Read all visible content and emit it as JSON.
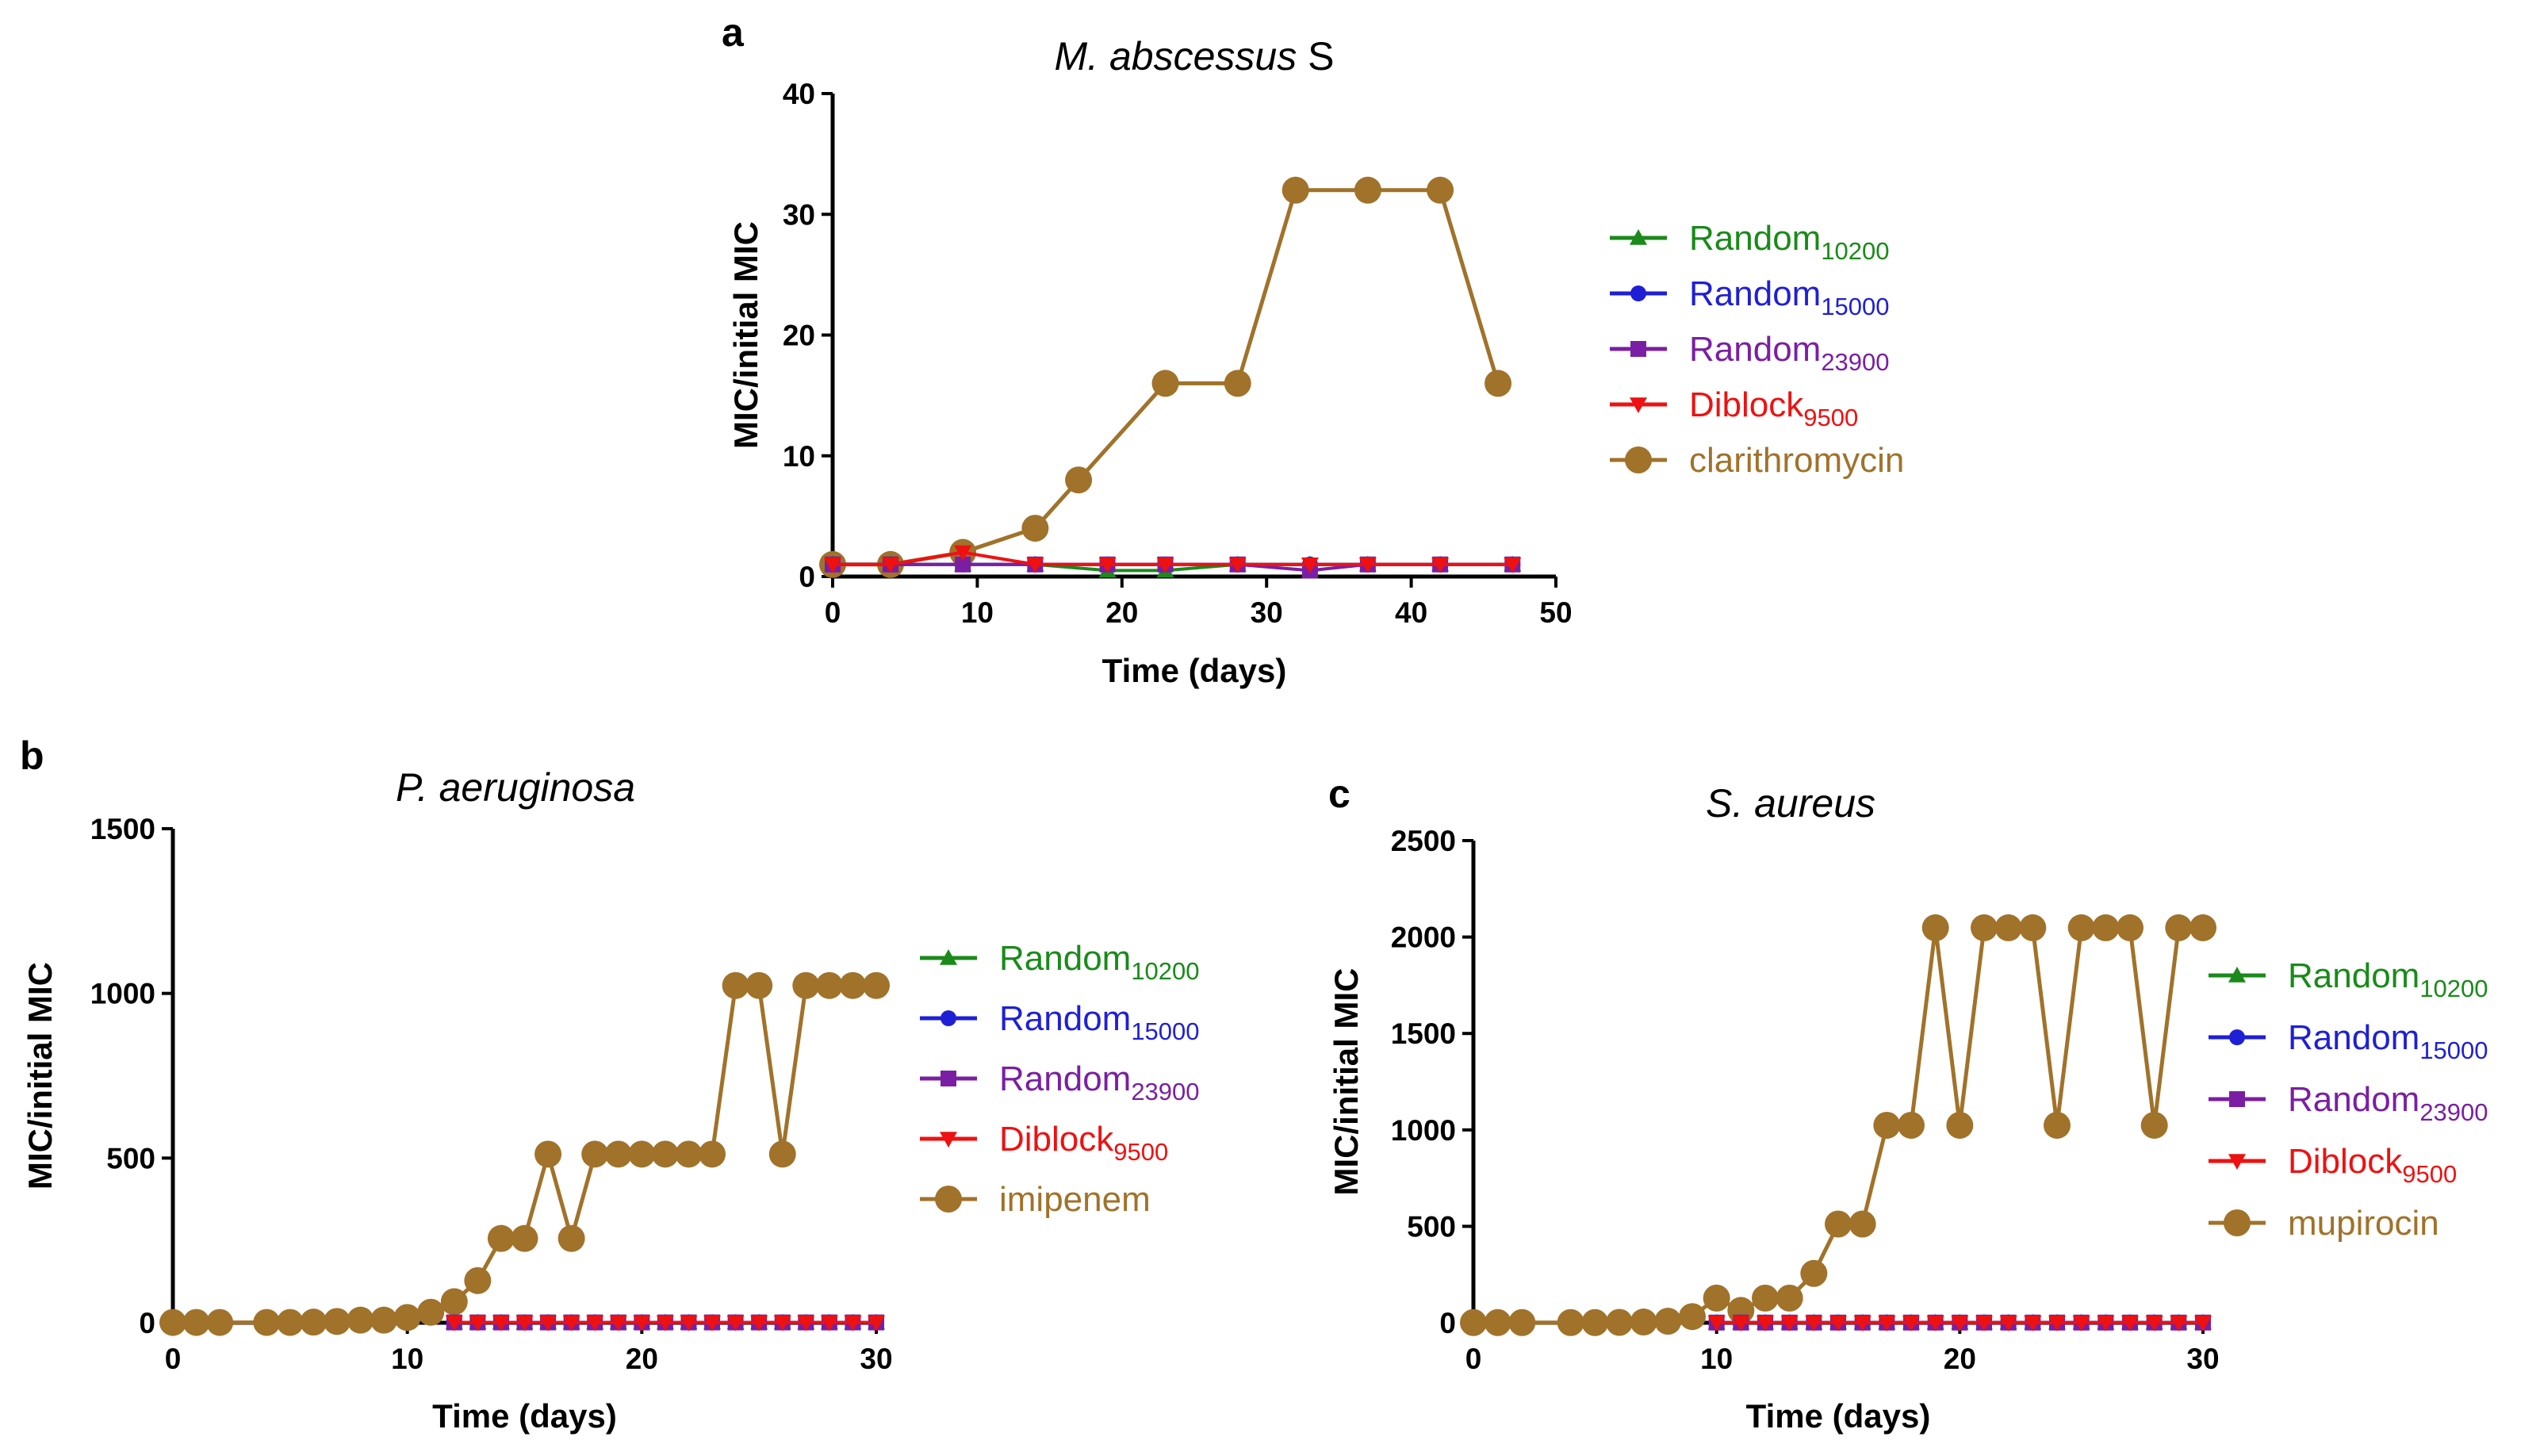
{
  "chart_data": [
    {
      "panel": "a",
      "type": "line",
      "title_parts": [
        "M. abscessus",
        " S"
      ],
      "xlabel": "Time (days)",
      "ylabel": "MIC/initial MIC",
      "xlim": [
        0,
        50
      ],
      "ylim": [
        0,
        40
      ],
      "xticks": [
        0,
        10,
        20,
        30,
        40,
        50
      ],
      "yticks": [
        0,
        10,
        20,
        30,
        40
      ],
      "grid": false,
      "legend_position": "right",
      "series": [
        {
          "label": "Random",
          "subscript": "10200",
          "color": "#1a8a1a",
          "marker": "triangle-up",
          "x": [
            0,
            4,
            9,
            14,
            19,
            23,
            28,
            33,
            37,
            42,
            47
          ],
          "y": [
            1,
            1,
            1,
            1,
            0.5,
            0.5,
            1,
            1,
            1,
            1,
            1
          ]
        },
        {
          "label": "Random",
          "subscript": "15000",
          "color": "#1f1fd6",
          "marker": "circle",
          "x": [
            0,
            4,
            9,
            14,
            19,
            23,
            28,
            33,
            37,
            42,
            47
          ],
          "y": [
            1,
            1,
            1,
            1,
            1,
            1,
            1,
            1,
            1,
            1,
            1
          ]
        },
        {
          "label": "Random",
          "subscript": "23900",
          "color": "#7a1fa3",
          "marker": "square",
          "x": [
            0,
            4,
            9,
            14,
            19,
            23,
            28,
            33,
            37,
            42,
            47
          ],
          "y": [
            1,
            1,
            1,
            1,
            1,
            1,
            1,
            0.5,
            1,
            1,
            1
          ]
        },
        {
          "label": "Diblock",
          "subscript": "9500",
          "color": "#ee1111",
          "marker": "triangle-down",
          "x": [
            0,
            4,
            9,
            14,
            19,
            23,
            28,
            33,
            37,
            42,
            47
          ],
          "y": [
            1,
            1,
            2,
            1,
            1,
            1,
            1,
            1,
            1,
            1,
            1
          ]
        },
        {
          "label": "clarithromycin",
          "subscript": "",
          "color": "#a0722a",
          "marker": "big-circle",
          "x": [
            0,
            4,
            9,
            14,
            17,
            23,
            28,
            32,
            37,
            42,
            46
          ],
          "y": [
            1,
            1,
            2,
            4,
            8,
            16,
            16,
            32,
            32,
            32,
            16
          ]
        }
      ]
    },
    {
      "panel": "b",
      "type": "line",
      "title_parts": [
        "P. aeruginosa",
        ""
      ],
      "xlabel": "Time (days)",
      "ylabel": "MIC/initial MIC",
      "xlim": [
        0,
        30
      ],
      "ylim": [
        0,
        1500
      ],
      "xticks": [
        0,
        10,
        20,
        30
      ],
      "yticks": [
        0,
        500,
        1000,
        1500
      ],
      "grid": false,
      "legend_position": "right",
      "series": [
        {
          "label": "Random",
          "subscript": "10200",
          "color": "#1a8a1a",
          "marker": "triangle-up",
          "x": [
            12,
            13,
            14,
            15,
            16,
            17,
            18,
            19,
            20,
            21,
            22,
            23,
            24,
            25,
            26,
            27,
            28,
            29,
            30
          ],
          "y": [
            1,
            1,
            1,
            1,
            1,
            1,
            1,
            1,
            1,
            1,
            1,
            1,
            1,
            1,
            1,
            1,
            1,
            1,
            1
          ]
        },
        {
          "label": "Random",
          "subscript": "15000",
          "color": "#1f1fd6",
          "marker": "circle",
          "x": [
            12,
            13,
            14,
            15,
            16,
            17,
            18,
            19,
            20,
            21,
            22,
            23,
            24,
            25,
            26,
            27,
            28,
            29,
            30
          ],
          "y": [
            1,
            1,
            1,
            1,
            1,
            1,
            1,
            1,
            1,
            1,
            1,
            1,
            1,
            1,
            1,
            1,
            1,
            1,
            1
          ]
        },
        {
          "label": "Random",
          "subscript": "23900",
          "color": "#7a1fa3",
          "marker": "square",
          "x": [
            12,
            13,
            14,
            15,
            16,
            17,
            18,
            19,
            20,
            21,
            22,
            23,
            24,
            25,
            26,
            27,
            28,
            29,
            30
          ],
          "y": [
            1,
            1,
            1,
            1,
            1,
            1,
            1,
            1,
            1,
            1,
            1,
            1,
            1,
            1,
            1,
            1,
            1,
            1,
            1
          ]
        },
        {
          "label": "Diblock",
          "subscript": "9500",
          "color": "#ee1111",
          "marker": "triangle-down",
          "x": [
            12,
            13,
            14,
            15,
            16,
            17,
            18,
            19,
            20,
            21,
            22,
            23,
            24,
            25,
            26,
            27,
            28,
            29,
            30
          ],
          "y": [
            1,
            1,
            1,
            1,
            1,
            1,
            1,
            1,
            1,
            1,
            1,
            1,
            1,
            1,
            1,
            1,
            1,
            1,
            1
          ]
        },
        {
          "label": "imipenem",
          "subscript": "",
          "color": "#a0722a",
          "marker": "big-circle",
          "x": [
            0,
            1,
            2,
            4,
            5,
            6,
            7,
            8,
            9,
            10,
            11,
            12,
            13,
            14,
            15,
            16,
            17,
            18,
            19,
            20,
            21,
            22,
            23,
            24,
            25,
            26,
            27,
            28,
            29,
            30
          ],
          "y": [
            1,
            1,
            1,
            1,
            1,
            2,
            4,
            8,
            8,
            16,
            32,
            64,
            128,
            256,
            256,
            512,
            256,
            512,
            512,
            512,
            512,
            512,
            512,
            1024,
            1024,
            512,
            1024,
            1024,
            1024,
            1024
          ]
        }
      ]
    },
    {
      "panel": "c",
      "type": "line",
      "title_parts": [
        "S. aureus",
        ""
      ],
      "xlabel": "Time (days)",
      "ylabel": "MIC/initial MIC",
      "xlim": [
        0,
        30
      ],
      "ylim": [
        0,
        2500
      ],
      "xticks": [
        0,
        10,
        20,
        30
      ],
      "yticks": [
        0,
        500,
        1000,
        1500,
        2000,
        2500
      ],
      "grid": false,
      "legend_position": "right",
      "series": [
        {
          "label": "Random",
          "subscript": "10200",
          "color": "#1a8a1a",
          "marker": "triangle-up",
          "x": [
            10,
            11,
            12,
            13,
            14,
            15,
            16,
            17,
            18,
            19,
            20,
            21,
            22,
            23,
            24,
            25,
            26,
            27,
            28,
            29,
            30
          ],
          "y": [
            1,
            1,
            1,
            1,
            1,
            1,
            1,
            1,
            1,
            1,
            1,
            1,
            1,
            1,
            1,
            1,
            1,
            1,
            1,
            1,
            1
          ]
        },
        {
          "label": "Random",
          "subscript": "15000",
          "color": "#1f1fd6",
          "marker": "circle",
          "x": [
            10,
            11,
            12,
            13,
            14,
            15,
            16,
            17,
            18,
            19,
            20,
            21,
            22,
            23,
            24,
            25,
            26,
            27,
            28,
            29,
            30
          ],
          "y": [
            1,
            1,
            1,
            1,
            1,
            1,
            1,
            1,
            1,
            1,
            1,
            1,
            1,
            1,
            1,
            1,
            1,
            1,
            1,
            1,
            1
          ]
        },
        {
          "label": "Random",
          "subscript": "23900",
          "color": "#7a1fa3",
          "marker": "square",
          "x": [
            10,
            11,
            12,
            13,
            14,
            15,
            16,
            17,
            18,
            19,
            20,
            21,
            22,
            23,
            24,
            25,
            26,
            27,
            28,
            29,
            30
          ],
          "y": [
            1,
            1,
            1,
            1,
            1,
            1,
            1,
            1,
            1,
            1,
            1,
            1,
            1,
            1,
            1,
            1,
            1,
            1,
            1,
            1,
            1
          ]
        },
        {
          "label": "Diblock",
          "subscript": "9500",
          "color": "#ee1111",
          "marker": "triangle-down",
          "x": [
            10,
            11,
            12,
            13,
            14,
            15,
            16,
            17,
            18,
            19,
            20,
            21,
            22,
            23,
            24,
            25,
            26,
            27,
            28,
            29,
            30
          ],
          "y": [
            1,
            1,
            1,
            1,
            1,
            1,
            1,
            1,
            1,
            1,
            1,
            1,
            1,
            1,
            1,
            1,
            1,
            1,
            1,
            1,
            1
          ]
        },
        {
          "label": "mupirocin",
          "subscript": "",
          "color": "#a0722a",
          "marker": "big-circle",
          "x": [
            0,
            1,
            2,
            4,
            5,
            6,
            7,
            8,
            9,
            10,
            11,
            12,
            13,
            14,
            15,
            16,
            17,
            18,
            19,
            20,
            21,
            22,
            23,
            24,
            25,
            26,
            27,
            28,
            29,
            30
          ],
          "y": [
            1,
            1,
            1,
            1,
            1,
            2,
            4,
            8,
            32,
            128,
            64,
            128,
            128,
            256,
            512,
            512,
            1024,
            1024,
            2048,
            1024,
            2048,
            2048,
            2048,
            1024,
            2048,
            2048,
            2048,
            1024,
            2048,
            2048
          ]
        }
      ]
    }
  ]
}
